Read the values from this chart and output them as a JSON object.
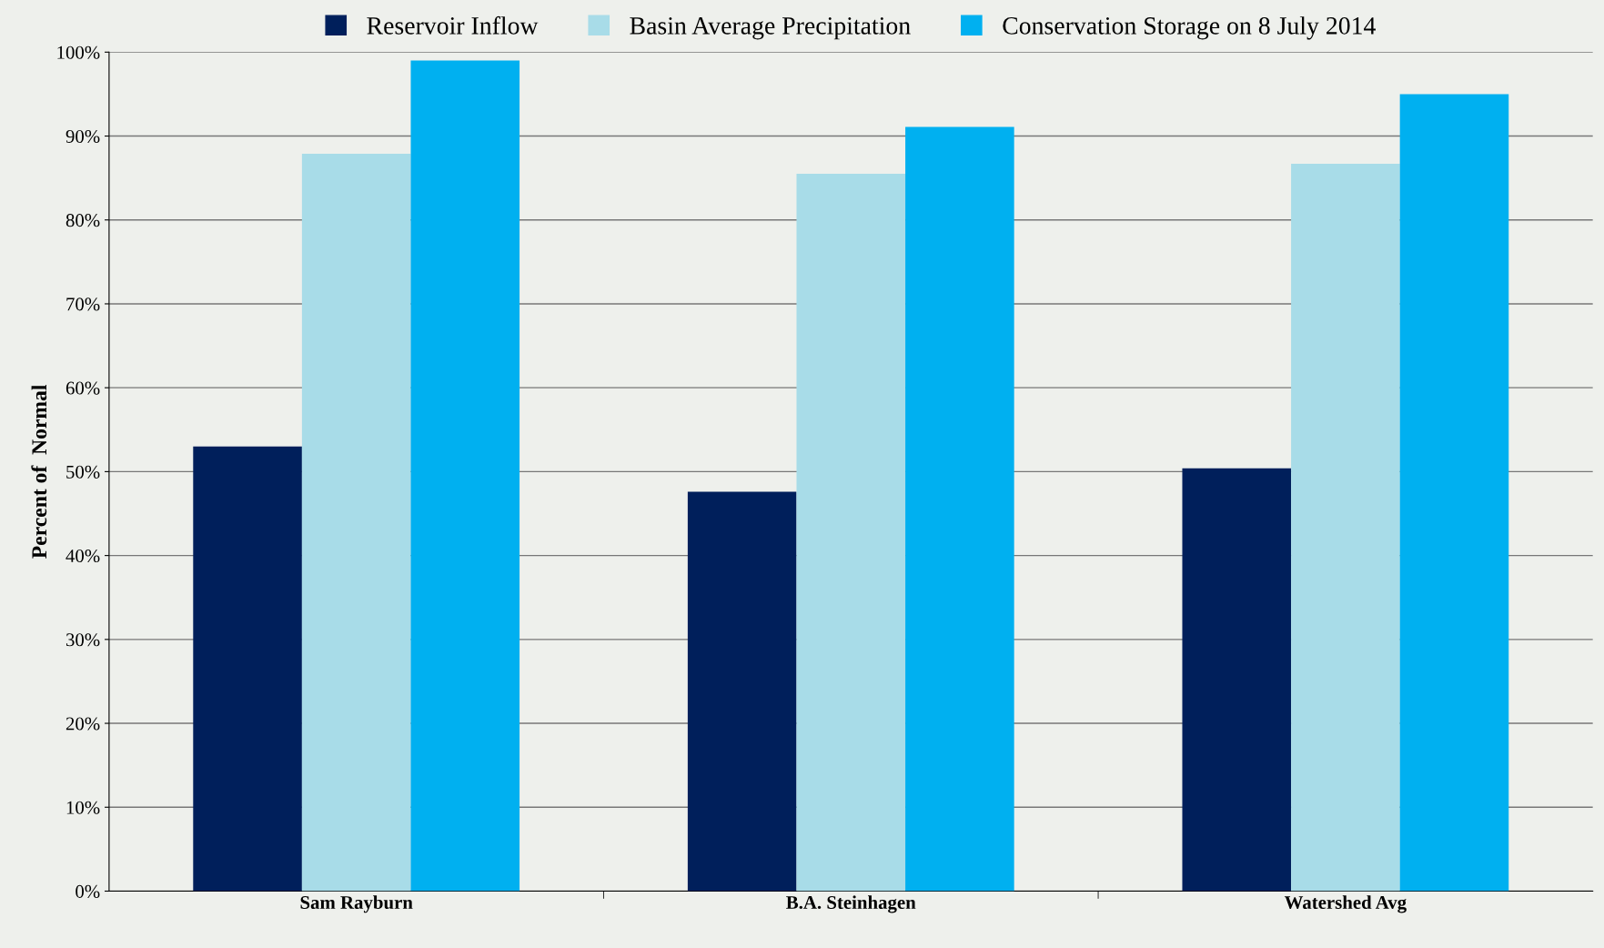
{
  "chart_data": {
    "type": "bar",
    "ylabel": "Percent of  Normal",
    "categories": [
      "Sam Rayburn",
      "B.A. Steinhagen",
      "Watershed Avg"
    ],
    "series": [
      {
        "name": "Reservoir Inflow",
        "color": "#001f5b",
        "values": [
          53.0,
          47.6,
          50.4
        ]
      },
      {
        "name": "Basin Average Precipitation",
        "color": "#a8dce8",
        "values": [
          87.9,
          85.5,
          86.7
        ]
      },
      {
        "name": "Conservation Storage on 8 July 2014",
        "color": "#00b0f0",
        "values": [
          99.0,
          91.1,
          95.0
        ]
      }
    ],
    "ylim": [
      0,
      100
    ],
    "yticks": [
      {
        "value": 0,
        "label": "0%"
      },
      {
        "value": 10,
        "label": "10%"
      },
      {
        "value": 20,
        "label": "20%"
      },
      {
        "value": 30,
        "label": "30%"
      },
      {
        "value": 40,
        "label": "40%"
      },
      {
        "value": 50,
        "label": "50%"
      },
      {
        "value": 60,
        "label": "60%"
      },
      {
        "value": 70,
        "label": "70%"
      },
      {
        "value": 80,
        "label": "80%"
      },
      {
        "value": 90,
        "label": "90%"
      },
      {
        "value": 100,
        "label": "100%"
      }
    ],
    "grid": "y",
    "legend": "top"
  }
}
